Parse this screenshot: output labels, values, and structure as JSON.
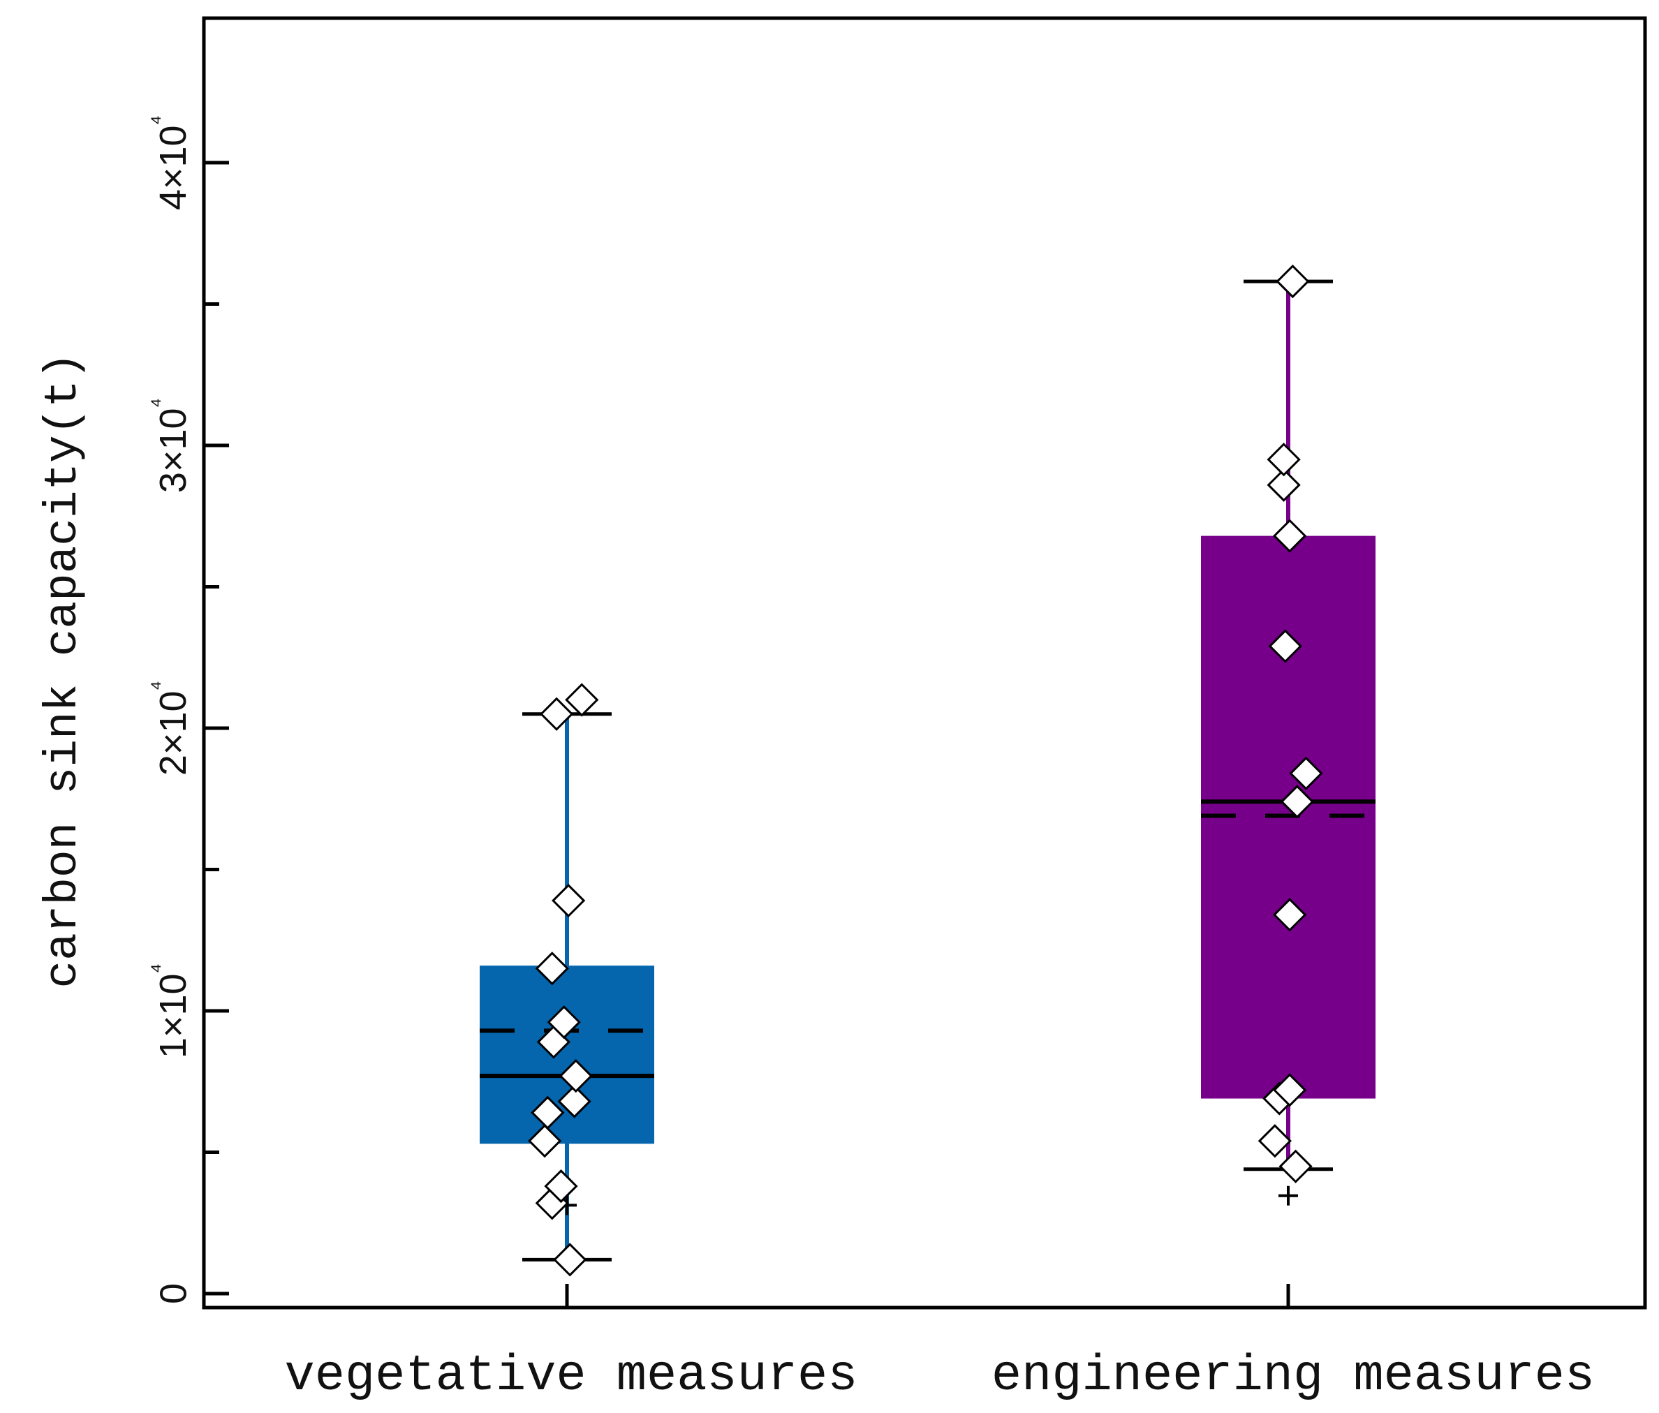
{
  "chart_data": {
    "type": "box",
    "ylabel": "carbon sink capacity(t)",
    "ylim": [
      -1000,
      45000
    ],
    "y_ticks_major": [
      0,
      10000,
      20000,
      30000,
      40000
    ],
    "y_tick_labels": [
      "0",
      "1×10⁴",
      "2×10⁴",
      "3×10⁴",
      "4×10⁴"
    ],
    "y_ticks_minor": [
      5000,
      15000,
      25000,
      35000
    ],
    "categories": [
      "vegetative measures",
      "engineering measures"
    ],
    "grid": false,
    "series": [
      {
        "color": "#0566ad",
        "whisker_low": 1200,
        "q1": 5300,
        "median": 7700,
        "mean": 9300,
        "q3": 11600,
        "whisker_high": 20500,
        "points": [
          1200,
          3200,
          3800,
          5400,
          6400,
          6800,
          7700,
          8900,
          9600,
          11500,
          13900,
          20500,
          21000
        ],
        "point_offsets": [
          0.02,
          -0.1,
          -0.04,
          -0.15,
          -0.13,
          0.05,
          0.06,
          -0.09,
          -0.02,
          -0.1,
          0.01,
          -0.07,
          0.1
        ]
      },
      {
        "color": "#76008a",
        "whisker_low": 4400,
        "q1": 6900,
        "median": 17400,
        "mean": 16900,
        "q3": 26800,
        "whisker_high": 35800,
        "points": [
          4500,
          5400,
          6900,
          7200,
          13400,
          17400,
          18400,
          22900,
          26800,
          28600,
          29500,
          35800
        ],
        "point_offsets": [
          0.05,
          -0.09,
          -0.06,
          0.01,
          0.01,
          0.06,
          0.12,
          -0.02,
          0.01,
          -0.03,
          -0.03,
          0.03
        ]
      }
    ]
  }
}
